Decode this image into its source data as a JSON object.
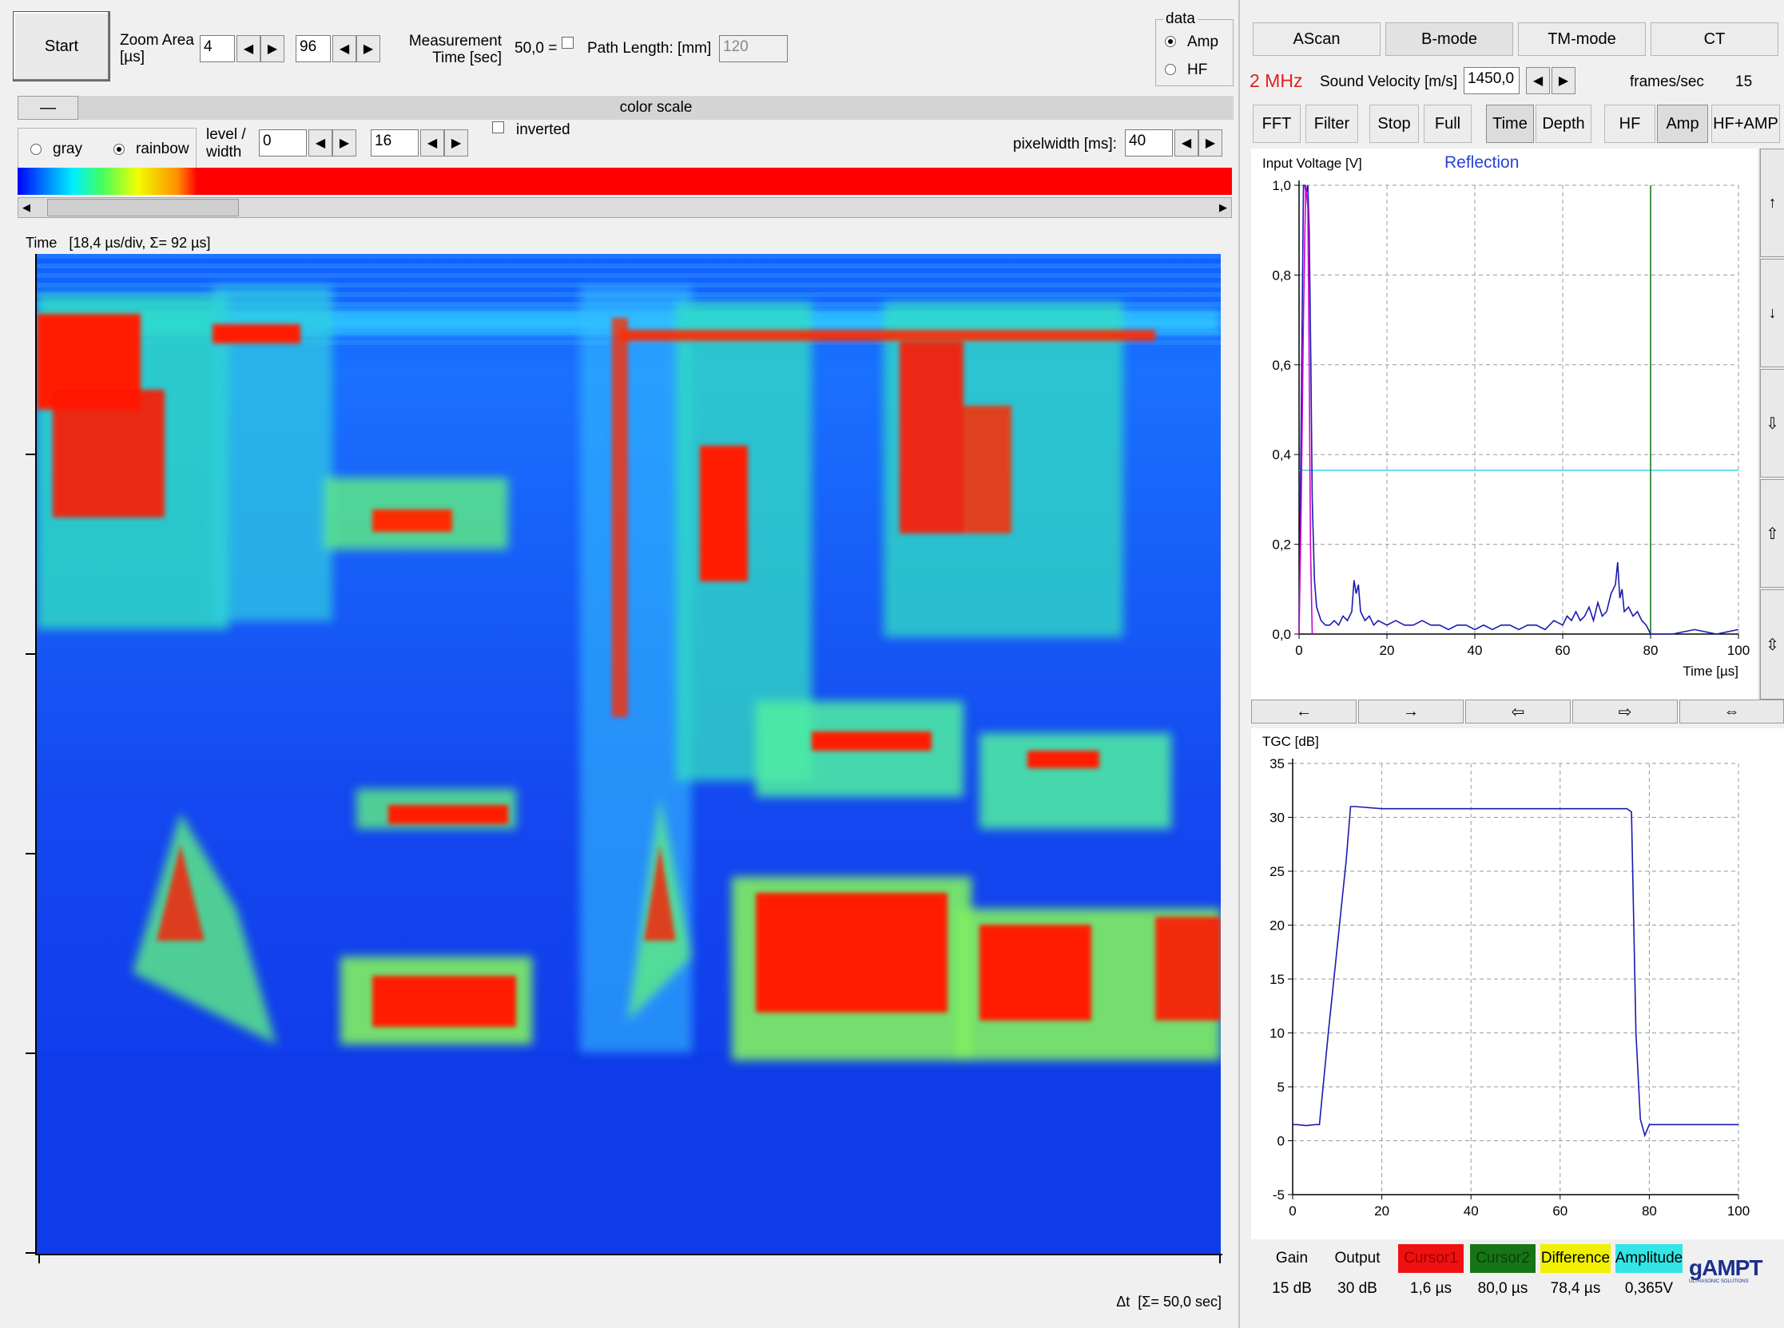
{
  "toolbar": {
    "start_label": "Start",
    "zoom_label_1": "Zoom Area",
    "zoom_label_2": "[µs]",
    "zoom_from": "4",
    "zoom_to": "96",
    "measurement_label_1": "Measurement",
    "measurement_label_2": "Time [sec]",
    "measurement_value": "50,0 =",
    "path_length_label": "Path Length: [mm]",
    "path_length_value": "120",
    "data_group_label": "data",
    "data_options": [
      "Amp",
      "HF"
    ],
    "data_selected": "Amp"
  },
  "colorscale": {
    "collapse_label": "—",
    "title": "color scale",
    "gray_label": "gray",
    "rainbow_label": "rainbow",
    "selected": "rainbow",
    "level_label_1": "level /",
    "level_label_2": "width",
    "level_value": "0",
    "width_value": "16",
    "inverted_label": "inverted",
    "pixelwidth_label": "pixelwidth [ms]:",
    "pixelwidth_value": "40"
  },
  "bmode": {
    "header": "Time   [18,4 µs/div, Σ= 92 µs]",
    "footer": "Δt  [Σ= 50,0 sec]"
  },
  "tabs": [
    "AScan",
    "B-mode",
    "TM-mode",
    "CT"
  ],
  "tab_active": "B-mode",
  "probe": {
    "frequency": "2 MHz",
    "sound_velocity_label": "Sound Velocity [m/s]",
    "sound_velocity_value": "1450,0",
    "fps_label": "frames/sec",
    "fps_value": "15"
  },
  "ascan_tools": [
    "FFT",
    "Filter",
    "Stop",
    "Full",
    "Time",
    "Depth",
    "HF",
    "Amp",
    "HF+AMP"
  ],
  "ascan_tools_active": [
    "Time",
    "Amp"
  ],
  "side_arrows": [
    "↑",
    "↓",
    "⇩",
    "⇧",
    "⇳"
  ],
  "bottom_arrows": [
    "←",
    "→",
    "⇦",
    "⇨",
    "⇔"
  ],
  "chart_data": [
    {
      "type": "line",
      "ylabel": "Input Voltage [V]",
      "annotation": "Reflection",
      "xlabel": "Time [µs]",
      "xlim": [
        0,
        100
      ],
      "ylim": [
        0,
        1.0
      ],
      "x_ticks": [
        "0",
        "20",
        "40",
        "60",
        "80",
        "100"
      ],
      "y_ticks": [
        "0,0",
        "0,2",
        "0,4",
        "0,6",
        "0,8",
        "1,0"
      ],
      "grid": true,
      "threshold_y": 0.365,
      "cursor2_x": 80,
      "series": [
        {
          "color": "#1a1ab0",
          "x": [
            0,
            0.5,
            1,
            1.3,
            1.6,
            2,
            2.3,
            2.7,
            3,
            3.5,
            4,
            5,
            6,
            7,
            8,
            9,
            10,
            11,
            12,
            12.5,
            13,
            13.5,
            14,
            15,
            16,
            17,
            18,
            20,
            22,
            24,
            26,
            28,
            30,
            32,
            34,
            36,
            38,
            40,
            42,
            44,
            46,
            48,
            50,
            52,
            54,
            56,
            58,
            60,
            61,
            62,
            63,
            64,
            65,
            66,
            67,
            68,
            69,
            70,
            71,
            72,
            72.5,
            73,
            73.5,
            74,
            75,
            76,
            77,
            78,
            79,
            79.5,
            80,
            82,
            85,
            90,
            95,
            100
          ],
          "y": [
            0.02,
            0.5,
            1.0,
            1.0,
            0.98,
            1.0,
            0.9,
            0.6,
            0.3,
            0.12,
            0.06,
            0.03,
            0.02,
            0.02,
            0.03,
            0.02,
            0.04,
            0.03,
            0.05,
            0.12,
            0.09,
            0.11,
            0.05,
            0.03,
            0.04,
            0.02,
            0.03,
            0.02,
            0.03,
            0.02,
            0.02,
            0.03,
            0.02,
            0.02,
            0.01,
            0.02,
            0.02,
            0.01,
            0.02,
            0.01,
            0.02,
            0.02,
            0.01,
            0.02,
            0.02,
            0.01,
            0.03,
            0.02,
            0.04,
            0.03,
            0.05,
            0.03,
            0.04,
            0.06,
            0.03,
            0.07,
            0.04,
            0.05,
            0.09,
            0.11,
            0.16,
            0.08,
            0.1,
            0.05,
            0.06,
            0.04,
            0.05,
            0.03,
            0.02,
            0.01,
            0.0,
            0.0,
            0.0,
            0.01,
            0.0,
            0.01
          ]
        },
        {
          "color": "#d000d0",
          "x": [
            0,
            0.5,
            1,
            1.5,
            2,
            2.3,
            2.6,
            3
          ],
          "y": [
            0.0,
            0.3,
            0.7,
            1.0,
            0.95,
            0.6,
            0.2,
            0.0
          ]
        }
      ]
    },
    {
      "type": "line",
      "ylabel": "TGC [dB]",
      "xlim": [
        0,
        100
      ],
      "ylim": [
        -5,
        35
      ],
      "x_ticks": [
        "0",
        "20",
        "40",
        "60",
        "80",
        "100"
      ],
      "y_ticks": [
        "-5",
        "0",
        "5",
        "10",
        "15",
        "20",
        "25",
        "30",
        "35"
      ],
      "grid": true,
      "series": [
        {
          "color": "#1a1ab0",
          "x": [
            0,
            1,
            3,
            5,
            6,
            8,
            10,
            12,
            13,
            14,
            20,
            40,
            60,
            75,
            76,
            77,
            78,
            79,
            80,
            85,
            100
          ],
          "y": [
            1.5,
            1.5,
            1.4,
            1.5,
            1.5,
            10,
            18,
            26,
            31,
            31,
            30.8,
            30.8,
            30.8,
            30.8,
            30.5,
            10,
            2,
            0.5,
            1.5,
            1.5,
            1.5
          ]
        }
      ]
    }
  ],
  "readouts": [
    {
      "label": "Gain",
      "value": "15 dB",
      "color": ""
    },
    {
      "label": "Output",
      "value": "30 dB",
      "color": ""
    },
    {
      "label": "Cursor1",
      "value": "1,6 µs",
      "color": "#ee1111"
    },
    {
      "label": "Cursor2",
      "value": "80,0 µs",
      "color": "#167516"
    },
    {
      "label": "Difference",
      "value": "78,4 µs",
      "color": "#f0f000"
    },
    {
      "label": "Amplitude",
      "value": "0,365V",
      "color": "#33e5e5"
    }
  ],
  "logo": {
    "text": "gAMPT",
    "tagline": "ULTRASONIC SOLUTIONS"
  }
}
